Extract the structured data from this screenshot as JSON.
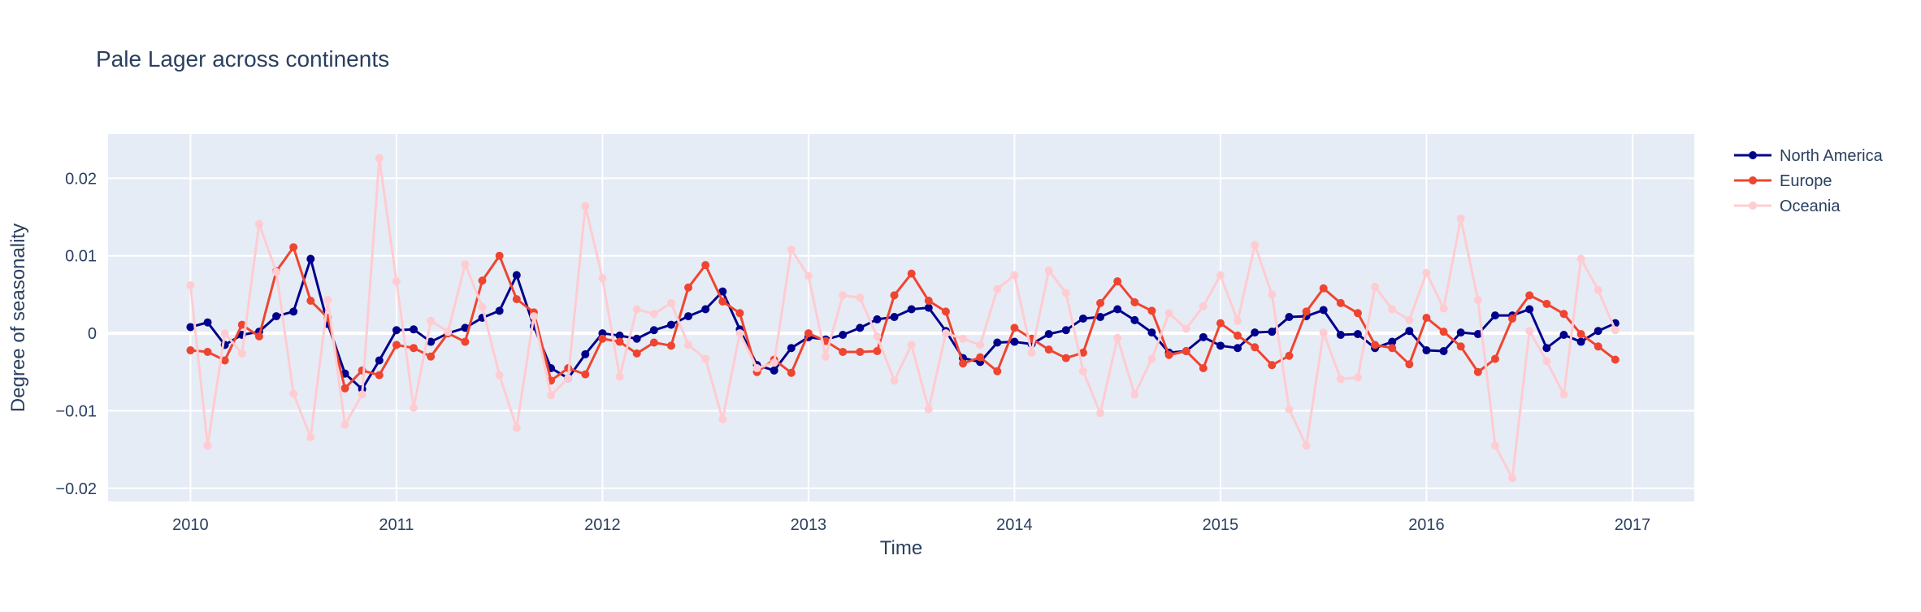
{
  "chart_data": {
    "type": "line",
    "title": "Pale Lager across continents",
    "xlabel": "Time",
    "ylabel": "Degree of seasonality",
    "xlim": [
      2009.6,
      2017.3
    ],
    "ylim": [
      -0.0217,
      0.0257
    ],
    "xticks": [
      2010,
      2011,
      2012,
      2013,
      2014,
      2015,
      2016,
      2017
    ],
    "xtick_labels": [
      "2010",
      "2011",
      "2012",
      "2013",
      "2014",
      "2015",
      "2016",
      "2017"
    ],
    "yticks": [
      0.02,
      0.01,
      0,
      -0.01,
      -0.02
    ],
    "ytick_labels": [
      "0.02",
      "0.01",
      "0",
      "−0.01",
      "−0.02"
    ],
    "grid": true,
    "legend_position": "top-right",
    "x_start": 2010,
    "x_step_months": 1,
    "series": [
      {
        "name": "North America",
        "color": "#00008b",
        "values": [
          0.0008,
          0.0014,
          -0.0015,
          -0.0002,
          0.0002,
          0.0022,
          0.0028,
          0.0096,
          0.0012,
          -0.0052,
          -0.0072,
          -0.0035,
          0.0004,
          0.0005,
          -0.0011,
          0.0,
          0.0007,
          0.002,
          0.0029,
          0.0075,
          0.0009,
          -0.0045,
          -0.0058,
          -0.0027,
          0.0,
          -0.0003,
          -0.0007,
          0.0004,
          0.0011,
          0.0022,
          0.0031,
          0.0054,
          0.0005,
          -0.0041,
          -0.0048,
          -0.0019,
          -0.0005,
          -0.0008,
          -0.0002,
          0.0007,
          0.0018,
          0.0021,
          0.0031,
          0.0033,
          0.0003,
          -0.0032,
          -0.0037,
          -0.0012,
          -0.0011,
          -0.0014,
          -0.0001,
          0.0004,
          0.0019,
          0.0021,
          0.0031,
          0.0017,
          0.0001,
          -0.0025,
          -0.0023,
          -0.0005,
          -0.0016,
          -0.0019,
          0.0001,
          0.0002,
          0.0021,
          0.0022,
          0.003,
          -0.0002,
          -0.0001,
          -0.0019,
          -0.0011,
          0.0003,
          -0.0022,
          -0.0023,
          0.0001,
          -0.0001,
          0.0023,
          0.0023,
          0.0031,
          -0.0019,
          -0.0002,
          -0.0011,
          0.0003,
          0.0013
        ]
      },
      {
        "name": "Europe",
        "color": "#ef4530",
        "values": [
          -0.0022,
          -0.0024,
          -0.0035,
          0.0011,
          -0.0004,
          0.008,
          0.0111,
          0.0042,
          0.002,
          -0.0071,
          -0.0048,
          -0.0054,
          -0.0015,
          -0.0019,
          -0.003,
          0.0,
          -0.0011,
          0.0068,
          0.01,
          0.0044,
          0.0027,
          -0.0061,
          -0.0045,
          -0.0053,
          -0.0007,
          -0.0011,
          -0.0026,
          -0.0012,
          -0.0016,
          0.0059,
          0.0088,
          0.0041,
          0.0026,
          -0.005,
          -0.0034,
          -0.0051,
          0.0,
          -0.001,
          -0.0024,
          -0.0024,
          -0.0023,
          0.0049,
          0.0077,
          0.0042,
          0.0028,
          -0.0039,
          -0.0031,
          -0.0049,
          0.0007,
          -0.0007,
          -0.0021,
          -0.0032,
          -0.0025,
          0.0039,
          0.0067,
          0.004,
          0.0029,
          -0.0028,
          -0.0023,
          -0.0045,
          0.0013,
          -0.0003,
          -0.0018,
          -0.0041,
          -0.0029,
          0.0028,
          0.0058,
          0.0039,
          0.0026,
          -0.0015,
          -0.0019,
          -0.004,
          0.002,
          0.0002,
          -0.0017,
          -0.005,
          -0.0033,
          0.0019,
          0.0049,
          0.0038,
          0.0025,
          -0.0001,
          -0.0017,
          -0.0034
        ]
      },
      {
        "name": "Oceania",
        "color": "#ffccd1",
        "values": [
          0.0062,
          -0.0145,
          0.0,
          -0.0026,
          0.0141,
          0.0079,
          -0.0078,
          -0.0134,
          0.0043,
          -0.0118,
          -0.0079,
          0.0226,
          0.0067,
          -0.0096,
          0.0016,
          0.0002,
          0.0089,
          0.0034,
          -0.0054,
          -0.0122,
          0.0022,
          -0.008,
          -0.0058,
          0.0164,
          0.0071,
          -0.0056,
          0.0031,
          0.0025,
          0.0039,
          -0.0015,
          -0.0033,
          -0.0111,
          0.0,
          -0.0045,
          -0.0038,
          0.0108,
          0.0074,
          -0.003,
          0.0049,
          0.0046,
          -0.0004,
          -0.0061,
          -0.0015,
          -0.0098,
          0.0,
          -0.0007,
          -0.0015,
          0.0057,
          0.0075,
          -0.0025,
          0.0081,
          0.0052,
          -0.0049,
          -0.0103,
          -0.0006,
          -0.0079,
          -0.0033,
          0.0026,
          0.0006,
          0.0035,
          0.0075,
          0.0016,
          0.0114,
          0.005,
          -0.0098,
          -0.0145,
          0.0001,
          -0.0059,
          -0.0057,
          0.006,
          0.0031,
          0.0017,
          0.0078,
          0.0032,
          0.0148,
          0.0043,
          -0.0145,
          -0.0187,
          0.0003,
          -0.0036,
          -0.0079,
          0.0096,
          0.0056,
          0.0004
        ]
      }
    ]
  }
}
